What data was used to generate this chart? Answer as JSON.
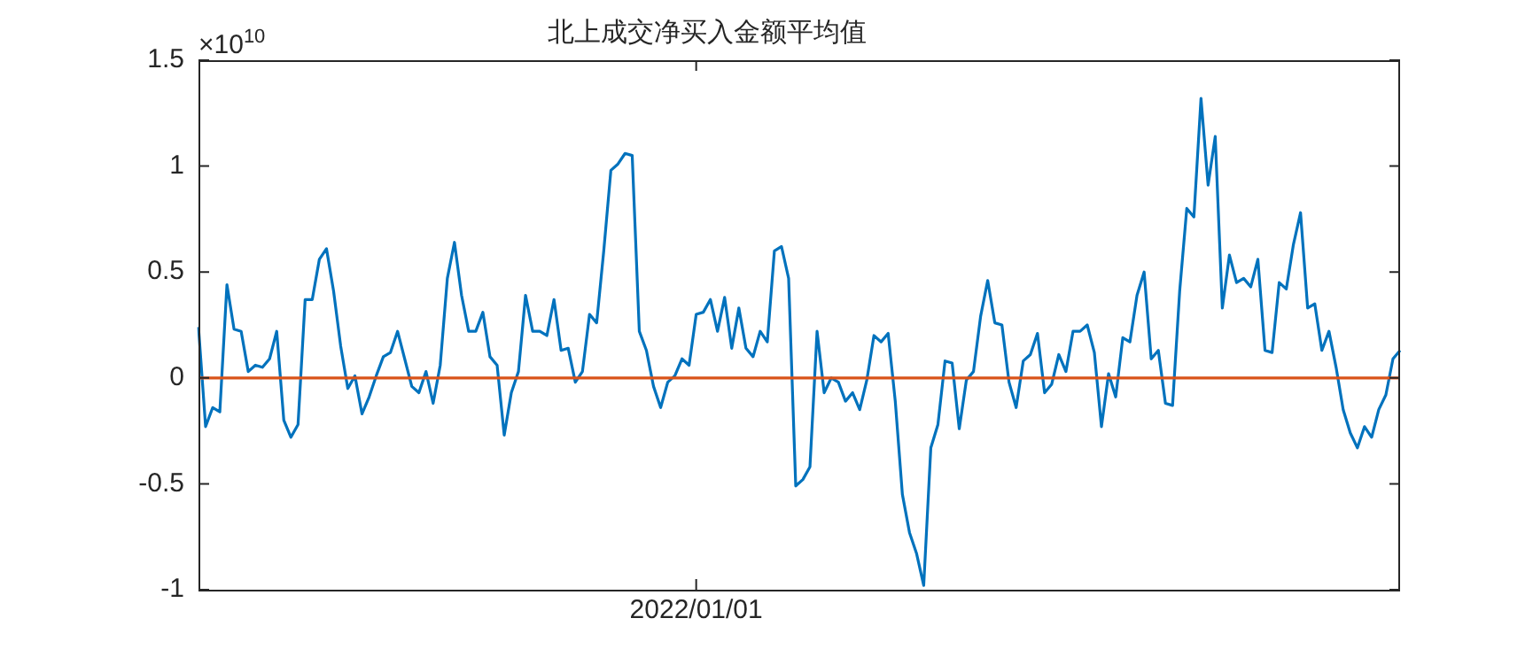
{
  "chart_data": {
    "type": "line",
    "title": "北上成交净买入金额平均值",
    "annotations": [
      "×10$^{10}$"
    ],
    "categories": [
      null,
      null,
      null,
      null,
      null,
      null,
      null,
      null,
      null,
      null,
      null,
      null,
      null,
      null,
      null,
      null,
      null,
      null,
      null,
      null,
      null,
      null,
      null,
      null,
      null,
      null,
      null,
      null,
      null,
      null,
      null,
      null,
      null,
      null,
      null,
      null,
      null,
      null,
      null,
      null,
      null,
      null,
      null,
      null,
      null,
      null,
      null,
      null,
      null,
      null,
      null,
      null,
      null,
      null,
      null,
      null,
      null,
      null,
      null,
      null,
      null,
      null,
      null,
      null,
      null,
      null,
      null,
      null,
      null,
      null,
      "2022/01/01",
      null,
      null,
      null,
      null,
      null,
      null,
      null,
      null,
      null,
      null,
      null,
      null,
      null,
      null,
      null,
      null,
      null,
      null,
      null,
      null,
      null,
      null,
      null,
      null,
      null,
      null,
      null,
      null,
      null,
      null,
      null,
      null,
      null,
      null,
      null,
      null,
      null,
      null,
      null,
      null,
      null,
      null,
      null,
      null,
      null,
      null,
      null,
      null,
      null,
      null,
      null,
      null,
      null,
      null,
      null,
      null,
      null,
      null,
      null,
      null,
      null,
      null,
      null,
      null,
      null,
      null,
      null,
      null,
      null,
      null,
      null,
      null,
      null,
      null,
      null,
      null,
      null,
      null,
      null,
      null,
      null,
      null,
      null,
      null,
      null,
      null,
      null,
      null,
      null,
      null,
      null,
      null,
      null,
      null,
      null,
      null,
      null,
      null,
      null
    ],
    "series": [
      {
        "color": "#0072bd",
        "values": [
          0.24,
          -0.23,
          -0.14,
          -0.16,
          0.44,
          0.23,
          0.22,
          0.03,
          0.06,
          0.05,
          0.09,
          0.22,
          -0.2,
          -0.28,
          -0.22,
          0.37,
          0.37,
          0.56,
          0.61,
          0.41,
          0.15,
          -0.05,
          0.01,
          -0.17,
          -0.09,
          0.01,
          0.1,
          0.12,
          0.22,
          0.09,
          -0.04,
          -0.07,
          0.03,
          -0.12,
          0.06,
          0.47,
          0.64,
          0.39,
          0.22,
          0.22,
          0.31,
          0.1,
          0.06,
          -0.27,
          -0.07,
          0.03,
          0.39,
          0.22,
          0.22,
          0.2,
          0.37,
          0.13,
          0.14,
          -0.02,
          0.03,
          0.3,
          0.26,
          0.6,
          0.98,
          1.01,
          1.06,
          1.05,
          0.22,
          0.13,
          -0.04,
          -0.14,
          -0.02,
          0.01,
          0.09,
          0.06,
          0.3,
          0.31,
          0.37,
          0.22,
          0.38,
          0.14,
          0.33,
          0.14,
          0.1,
          0.22,
          0.17,
          0.6,
          0.62,
          0.47,
          -0.51,
          -0.48,
          -0.42,
          0.22,
          -0.07,
          0.0,
          -0.02,
          -0.11,
          -0.07,
          -0.15,
          -0.01,
          0.2,
          0.17,
          0.21,
          -0.11,
          -0.55,
          -0.73,
          -0.83,
          -0.98,
          -0.33,
          -0.22,
          0.08,
          0.07,
          -0.24,
          -0.01,
          0.03,
          0.29,
          0.46,
          0.26,
          0.25,
          -0.02,
          -0.14,
          0.08,
          0.11,
          0.21,
          -0.07,
          -0.03,
          0.11,
          0.03,
          0.22,
          0.22,
          0.25,
          0.12,
          -0.23,
          0.02,
          -0.09,
          0.19,
          0.17,
          0.39,
          0.5,
          0.09,
          0.13,
          -0.12,
          -0.13,
          0.41,
          0.8,
          0.76,
          1.32,
          0.91,
          1.14,
          0.33,
          0.58,
          0.45,
          0.47,
          0.43,
          0.56,
          0.13,
          0.12,
          0.45,
          0.42,
          0.63,
          0.78,
          0.33,
          0.35,
          0.13,
          0.22,
          0.05,
          -0.15,
          -0.26,
          -0.33,
          -0.23,
          -0.28,
          -0.15,
          -0.08,
          0.09,
          0.13
        ]
      }
    ],
    "ref_lines": [
      {
        "axis": "y",
        "value": 0,
        "color": "#d95319"
      }
    ],
    "ylim": [
      -1,
      1.5
    ],
    "yticks": [
      -1,
      -0.5,
      0,
      0.5,
      1,
      1.5
    ],
    "grid": false,
    "legend": false,
    "marker": "none",
    "line_style": "solid"
  }
}
